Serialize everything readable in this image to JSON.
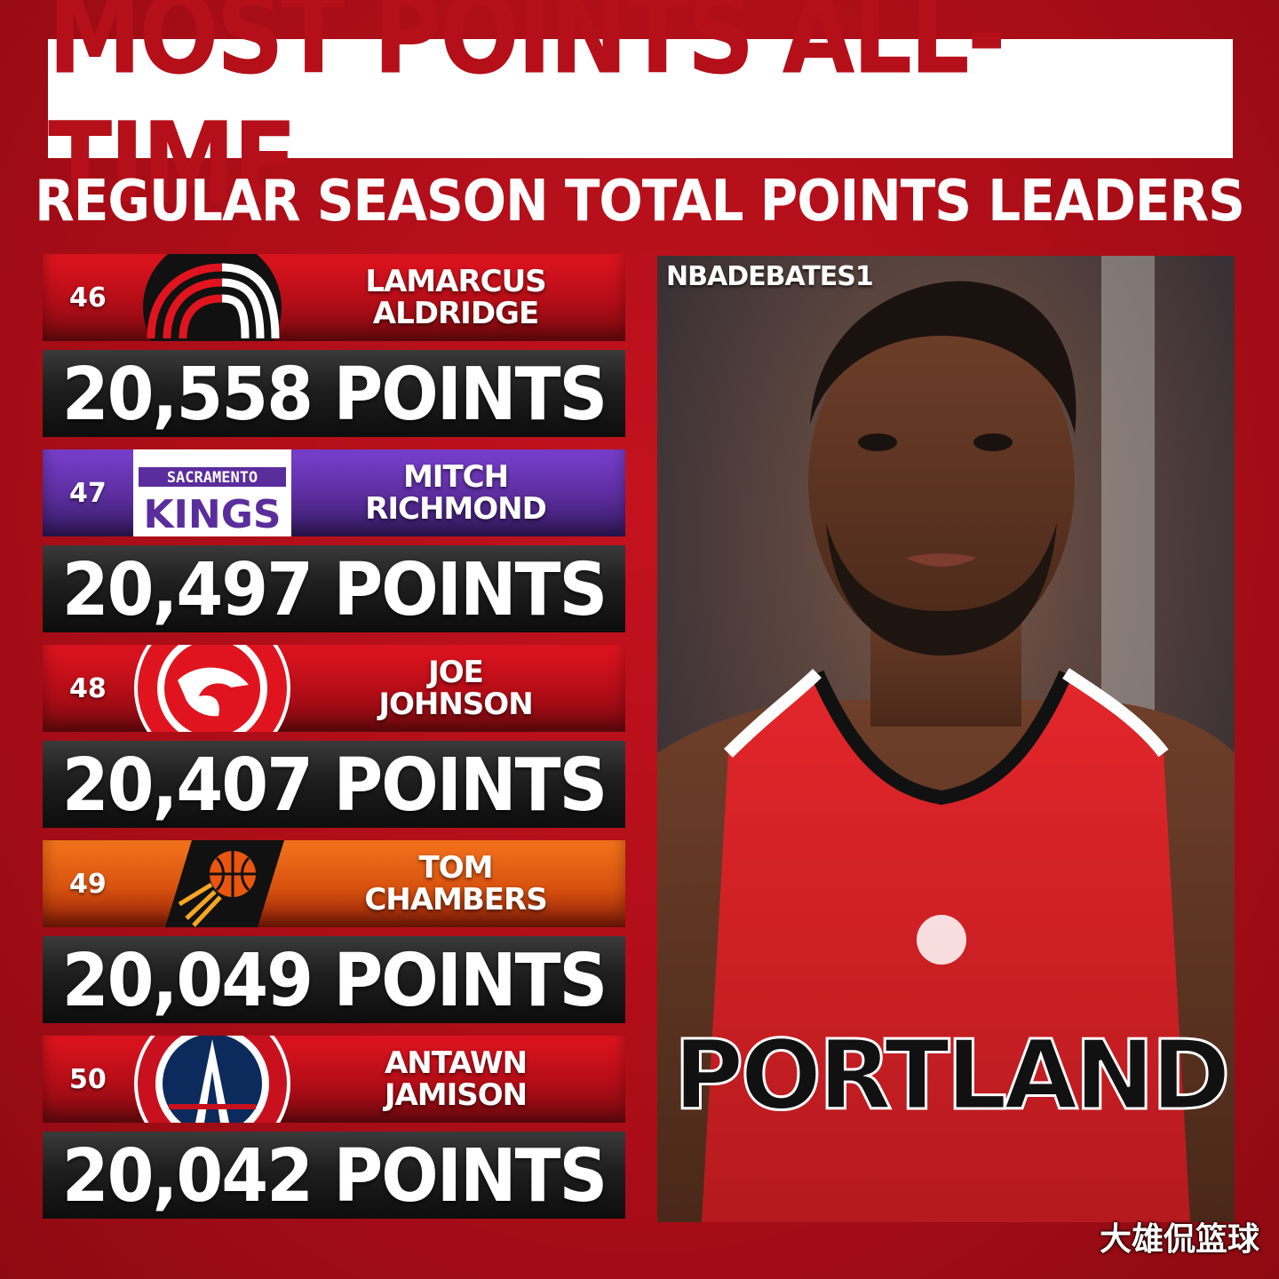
{
  "title": "MOST POINTS ALL-TIME",
  "subtitle": "REGULAR SEASON TOTAL POINTS LEADERS",
  "credit": "NBADEBATES1",
  "jersey_text": "PORTLAND",
  "watermark": "大雄侃篮球",
  "players": [
    {
      "rank": "46",
      "first": "LAMARCUS",
      "last": "ALDRIDGE",
      "points": "20,558 POINTS",
      "team_logo": "trail-blazers-logo",
      "logo_text": "",
      "color": "#c8101e"
    },
    {
      "rank": "47",
      "first": "MITCH",
      "last": "RICHMOND",
      "points": "20,497 POINTS",
      "team_logo": "kings-logo",
      "logo_text": "SACRAMENTO",
      "logo_text2": "KINGS",
      "color": "#5a2d9c"
    },
    {
      "rank": "48",
      "first": "JOE",
      "last": "JOHNSON",
      "points": "20,407 POINTS",
      "team_logo": "hawks-logo",
      "logo_text": "",
      "color": "#d4111e"
    },
    {
      "rank": "49",
      "first": "TOM",
      "last": "CHAMBERS",
      "points": "20,049 POINTS",
      "team_logo": "suns-logo",
      "logo_text": "",
      "color": "#e8560f"
    },
    {
      "rank": "50",
      "first": "ANTAWN",
      "last": "JAMISON",
      "points": "20,042 POINTS",
      "team_logo": "wizards-logo",
      "logo_text": "",
      "color": "#c8101e"
    }
  ]
}
